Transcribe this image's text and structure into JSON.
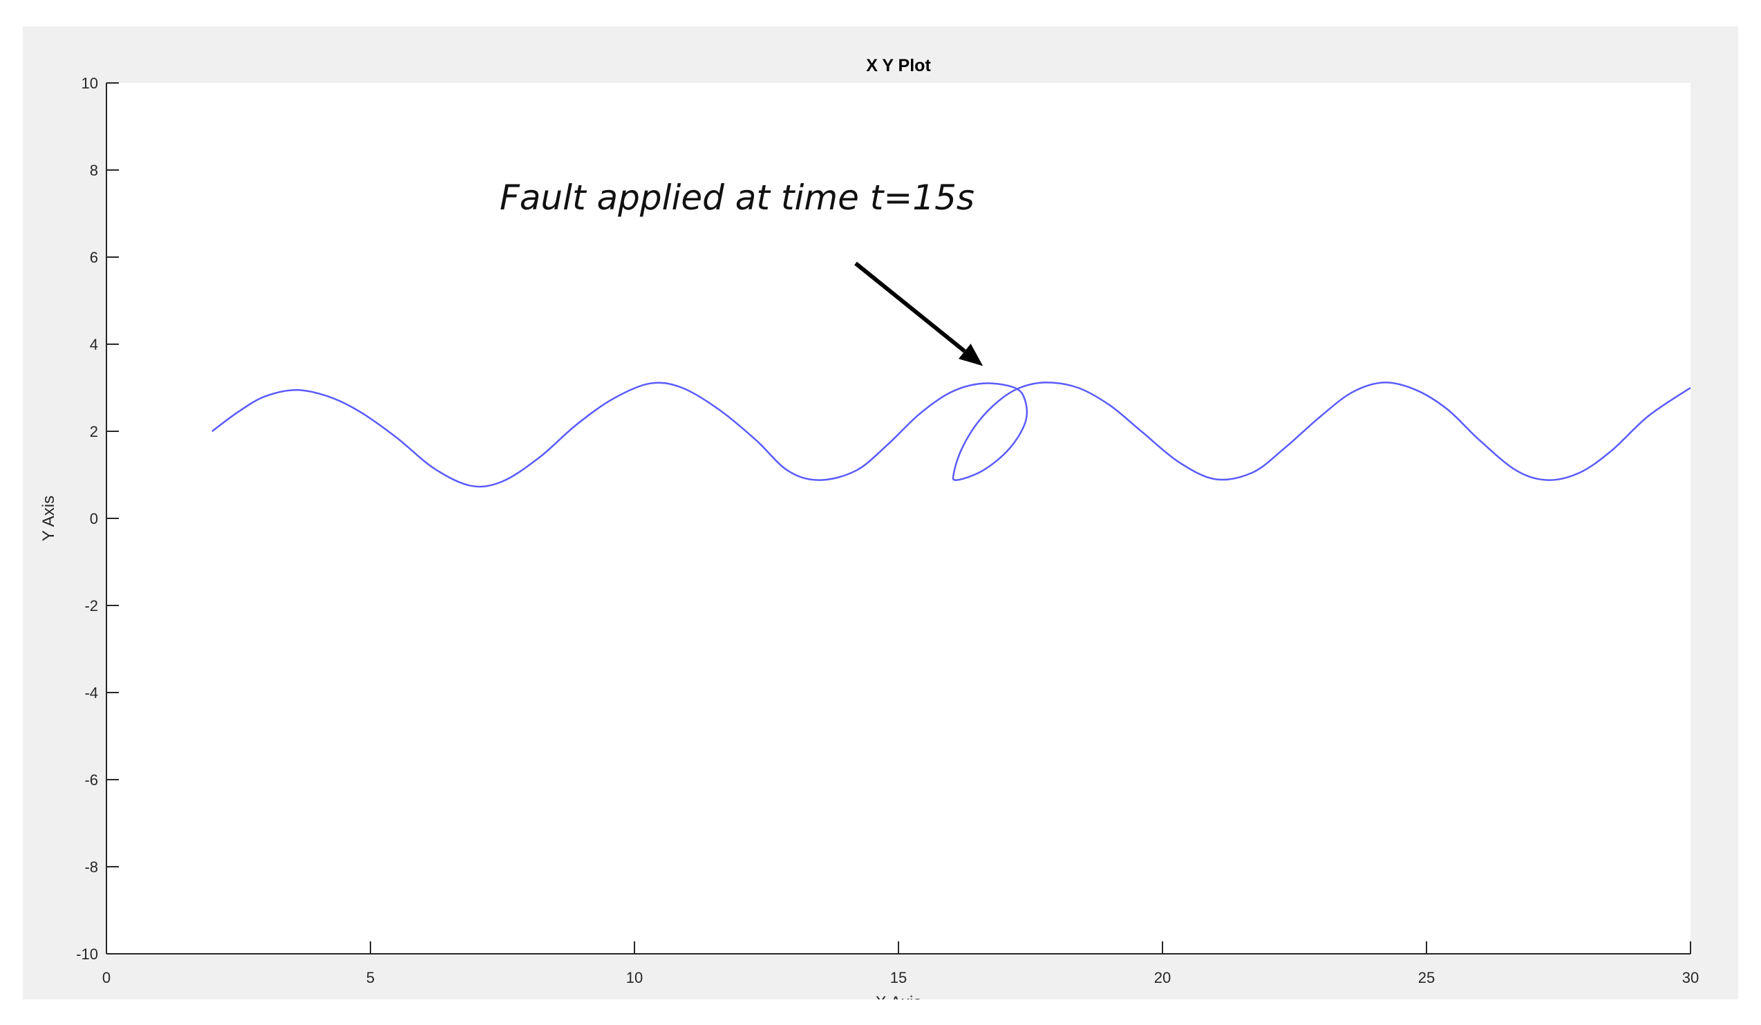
{
  "chart_data": {
    "type": "line",
    "title": "X Y Plot",
    "xlabel": "X Axis",
    "ylabel": "Y Axis",
    "xlim": [
      0,
      30
    ],
    "ylim": [
      -10,
      10
    ],
    "xticks": [
      0,
      5,
      10,
      15,
      20,
      25,
      30
    ],
    "yticks": [
      -10,
      -8,
      -6,
      -4,
      -2,
      0,
      2,
      4,
      6,
      8,
      10
    ],
    "grid": false,
    "legend": "none",
    "line_color": "#5b5bff",
    "series": [
      {
        "points": [
          [
            2.0,
            2.0
          ],
          [
            2.5,
            2.45
          ],
          [
            3.0,
            2.8
          ],
          [
            3.6,
            2.95
          ],
          [
            4.2,
            2.8
          ],
          [
            4.8,
            2.45
          ],
          [
            5.5,
            1.85
          ],
          [
            6.2,
            1.15
          ],
          [
            6.9,
            0.75
          ],
          [
            7.5,
            0.85
          ],
          [
            8.2,
            1.4
          ],
          [
            8.9,
            2.15
          ],
          [
            9.6,
            2.75
          ],
          [
            10.3,
            3.1
          ],
          [
            10.9,
            3.0
          ],
          [
            11.6,
            2.5
          ],
          [
            12.3,
            1.8
          ],
          [
            12.9,
            1.1
          ],
          [
            13.5,
            0.88
          ],
          [
            14.2,
            1.1
          ],
          [
            14.8,
            1.7
          ],
          [
            15.4,
            2.4
          ],
          [
            16.0,
            2.9
          ],
          [
            16.6,
            3.1
          ],
          [
            17.2,
            3.0
          ],
          [
            17.4,
            2.7
          ],
          [
            17.4,
            2.2
          ],
          [
            17.1,
            1.6
          ],
          [
            16.6,
            1.1
          ],
          [
            16.1,
            0.88
          ],
          [
            16.05,
            1.05
          ],
          [
            16.2,
            1.6
          ],
          [
            16.5,
            2.2
          ],
          [
            16.9,
            2.7
          ],
          [
            17.3,
            3.0
          ],
          [
            17.8,
            3.12
          ],
          [
            18.4,
            3.0
          ],
          [
            19.0,
            2.6
          ],
          [
            19.6,
            2.0
          ],
          [
            20.3,
            1.3
          ],
          [
            21.0,
            0.9
          ],
          [
            21.7,
            1.05
          ],
          [
            22.3,
            1.6
          ],
          [
            23.0,
            2.35
          ],
          [
            23.6,
            2.9
          ],
          [
            24.2,
            3.12
          ],
          [
            24.8,
            2.95
          ],
          [
            25.4,
            2.5
          ],
          [
            26.0,
            1.8
          ],
          [
            26.7,
            1.1
          ],
          [
            27.3,
            0.88
          ],
          [
            27.9,
            1.05
          ],
          [
            28.5,
            1.55
          ],
          [
            29.2,
            2.35
          ],
          [
            30.0,
            3.0
          ]
        ]
      }
    ],
    "annotations": [
      {
        "text": "Fault applied at time t=15s",
        "arrow_to": [
          16.6,
          3.5
        ]
      }
    ]
  }
}
